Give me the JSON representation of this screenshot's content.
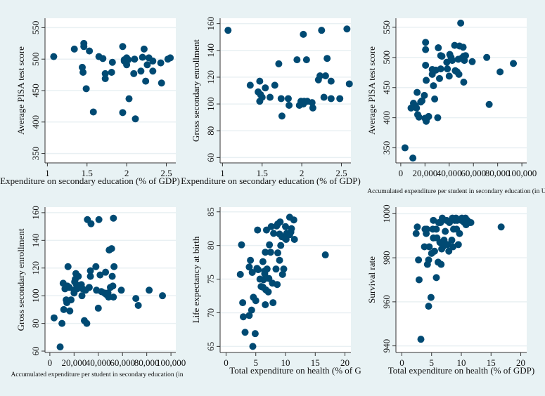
{
  "chart_data": [
    {
      "type": "scatter",
      "id": "p1",
      "title": "",
      "xlabel": "Expenditure on secondary education (% of GDP)",
      "ylabel": "Average PISA test score",
      "xlim": [
        0.97,
        2.62
      ],
      "ylim": [
        335,
        565
      ],
      "xticks": [
        1,
        1.5,
        2,
        2.5
      ],
      "xtick_labels": [
        "1",
        "1.5",
        "2",
        "2.5"
      ],
      "yticks": [
        350,
        400,
        450,
        500,
        550
      ],
      "ytick_labels": [
        "350",
        "400",
        "450",
        "500",
        "550"
      ],
      "grid": true,
      "points": [
        [
          1.08,
          504
        ],
        [
          1.34,
          516
        ],
        [
          1.46,
          525
        ],
        [
          1.46,
          520
        ],
        [
          1.53,
          513
        ],
        [
          1.44,
          487
        ],
        [
          1.45,
          479
        ],
        [
          1.49,
          453
        ],
        [
          1.58,
          416
        ],
        [
          1.65,
          504
        ],
        [
          1.7,
          501
        ],
        [
          1.73,
          477
        ],
        [
          1.73,
          469
        ],
        [
          1.81,
          479
        ],
        [
          1.82,
          495
        ],
        [
          1.95,
          520
        ],
        [
          1.97,
          499
        ],
        [
          2.0,
          502
        ],
        [
          2.0,
          491
        ],
        [
          2.02,
          499
        ],
        [
          1.97,
          497
        ],
        [
          1.95,
          415
        ],
        [
          2.03,
          437
        ],
        [
          2.1,
          500
        ],
        [
          2.09,
          477
        ],
        [
          2.11,
          405
        ],
        [
          2.18,
          481
        ],
        [
          2.2,
          503
        ],
        [
          2.22,
          516
        ],
        [
          2.24,
          465
        ],
        [
          2.26,
          491
        ],
        [
          2.28,
          502
        ],
        [
          2.33,
          497
        ],
        [
          2.33,
          481
        ],
        [
          2.43,
          494
        ],
        [
          2.44,
          462
        ],
        [
          2.52,
          500
        ],
        [
          2.55,
          502
        ]
      ]
    },
    {
      "type": "scatter",
      "id": "p2",
      "title": "",
      "xlabel": "Expenditure on secondary education (% of GDP)",
      "ylabel": "Gross secondary enrollment",
      "xlim": [
        0.97,
        2.62
      ],
      "ylim": [
        56,
        164
      ],
      "xticks": [
        1,
        1.5,
        2,
        2.5
      ],
      "xtick_labels": [
        "1",
        "1.5",
        "2",
        "2.5"
      ],
      "yticks": [
        60,
        80,
        100,
        120,
        140,
        160
      ],
      "ytick_labels": [
        "60",
        "80",
        "100",
        "120",
        "140",
        "160"
      ],
      "grid": true,
      "points": [
        [
          1.07,
          155
        ],
        [
          1.35,
          114
        ],
        [
          1.45,
          109
        ],
        [
          1.47,
          117
        ],
        [
          1.48,
          107
        ],
        [
          1.47,
          102
        ],
        [
          1.5,
          105
        ],
        [
          1.54,
          112
        ],
        [
          1.6,
          105
        ],
        [
          1.66,
          114
        ],
        [
          1.71,
          130
        ],
        [
          1.74,
          104
        ],
        [
          1.75,
          91
        ],
        [
          1.83,
          104
        ],
        [
          1.84,
          99
        ],
        [
          1.94,
          133
        ],
        [
          1.97,
          99
        ],
        [
          1.99,
          102
        ],
        [
          2.02,
          152
        ],
        [
          2.02,
          100
        ],
        [
          2.03,
          102
        ],
        [
          2.06,
          133
        ],
        [
          2.07,
          102
        ],
        [
          2.13,
          101
        ],
        [
          2.14,
          97
        ],
        [
          2.21,
          118
        ],
        [
          2.23,
          121
        ],
        [
          2.25,
          155
        ],
        [
          2.28,
          105
        ],
        [
          2.3,
          121
        ],
        [
          2.32,
          134
        ],
        [
          2.37,
          117
        ],
        [
          2.37,
          104
        ],
        [
          2.48,
          104
        ],
        [
          2.57,
          156
        ],
        [
          2.6,
          115
        ]
      ]
    },
    {
      "type": "scatter",
      "id": "p3",
      "title": "",
      "xlabel": "Accumulated expenditure per student in secondary education (in US$)",
      "ylabel": "Average PISA test score",
      "xlim": [
        -4000,
        104000
      ],
      "ylim": [
        325,
        565
      ],
      "xticks": [
        0,
        20000,
        40000,
        60000,
        80000,
        100000
      ],
      "xtick_labels": [
        "0",
        "20,000",
        "40,000",
        "60,000",
        "80,000",
        "100,000"
      ],
      "yticks": [
        350,
        400,
        450,
        500,
        550
      ],
      "ytick_labels": [
        "350",
        "400",
        "450",
        "500",
        "550"
      ],
      "grid": true,
      "points": [
        [
          3500,
          350
        ],
        [
          10000,
          333
        ],
        [
          8500,
          416
        ],
        [
          10500,
          424
        ],
        [
          12000,
          420
        ],
        [
          13000,
          416
        ],
        [
          13500,
          442
        ],
        [
          14000,
          405
        ],
        [
          15000,
          401
        ],
        [
          16500,
          426
        ],
        [
          17500,
          428
        ],
        [
          19500,
          437
        ],
        [
          20000,
          399
        ],
        [
          20500,
          525
        ],
        [
          20500,
          513
        ],
        [
          20500,
          487
        ],
        [
          21000,
          462
        ],
        [
          21000,
          394
        ],
        [
          22000,
          400
        ],
        [
          23000,
          402
        ],
        [
          26000,
          480
        ],
        [
          26000,
          472
        ],
        [
          27000,
          453
        ],
        [
          28000,
          431
        ],
        [
          29000,
          479
        ],
        [
          30500,
          400
        ],
        [
          31000,
          516
        ],
        [
          32000,
          465
        ],
        [
          33000,
          481
        ],
        [
          33000,
          503
        ],
        [
          34000,
          502
        ],
        [
          38000,
          492
        ],
        [
          38500,
          481
        ],
        [
          40000,
          469
        ],
        [
          40500,
          505
        ],
        [
          41500,
          500
        ],
        [
          42500,
          495
        ],
        [
          44500,
          520
        ],
        [
          45000,
          478
        ],
        [
          46500,
          476
        ],
        [
          47500,
          497
        ],
        [
          48000,
          472
        ],
        [
          48500,
          519
        ],
        [
          49500,
          557
        ],
        [
          50500,
          499
        ],
        [
          51500,
          517
        ],
        [
          52000,
          502
        ],
        [
          52000,
          459
        ],
        [
          52500,
          495
        ],
        [
          53500,
          503
        ],
        [
          59000,
          493
        ],
        [
          71000,
          500
        ],
        [
          73000,
          422
        ],
        [
          82000,
          476
        ],
        [
          93000,
          490
        ]
      ]
    },
    {
      "type": "scatter",
      "id": "p4",
      "title": "",
      "xlabel": "Accumulated expenditure per student in secondary education (in",
      "ylabel": "Gross secondary enrollment",
      "xlim": [
        -4000,
        104000
      ],
      "ylim": [
        59,
        164
      ],
      "xticks": [
        0,
        20000,
        40000,
        60000,
        80000,
        100000
      ],
      "xtick_labels": [
        "0",
        "20,000",
        "40,000",
        "60,000",
        "80,000",
        "100,000"
      ],
      "yticks": [
        60,
        80,
        100,
        120,
        140,
        160
      ],
      "ytick_labels": [
        "60",
        "80",
        "100",
        "120",
        "140",
        "160"
      ],
      "grid": true,
      "points": [
        [
          3500,
          84
        ],
        [
          8500,
          63
        ],
        [
          10000,
          80
        ],
        [
          11000,
          109
        ],
        [
          11500,
          90
        ],
        [
          12500,
          105
        ],
        [
          13500,
          97
        ],
        [
          14000,
          95
        ],
        [
          14500,
          107
        ],
        [
          15000,
          121
        ],
        [
          16000,
          106
        ],
        [
          16500,
          89
        ],
        [
          17500,
          97
        ],
        [
          20000,
          102
        ],
        [
          20000,
          104
        ],
        [
          20500,
          110
        ],
        [
          21000,
          112
        ],
        [
          21500,
          116
        ],
        [
          22000,
          108
        ],
        [
          22500,
          105
        ],
        [
          23500,
          114
        ],
        [
          26000,
          108
        ],
        [
          26500,
          100
        ],
        [
          27000,
          105
        ],
        [
          28500,
          82
        ],
        [
          29500,
          104
        ],
        [
          30500,
          80
        ],
        [
          31000,
          155
        ],
        [
          32500,
          106
        ],
        [
          33500,
          114
        ],
        [
          33500,
          118
        ],
        [
          34000,
          152
        ],
        [
          38000,
          121
        ],
        [
          38500,
          104
        ],
        [
          40000,
          91
        ],
        [
          40500,
          155
        ],
        [
          41500,
          115
        ],
        [
          42500,
          103
        ],
        [
          45000,
          102
        ],
        [
          46000,
          117
        ],
        [
          46500,
          101
        ],
        [
          48000,
          102
        ],
        [
          48500,
          99
        ],
        [
          49000,
          133
        ],
        [
          50000,
          106
        ],
        [
          51000,
          134
        ],
        [
          51500,
          114
        ],
        [
          52000,
          107
        ],
        [
          52500,
          99
        ],
        [
          52500,
          156
        ],
        [
          53000,
          121
        ],
        [
          59000,
          104
        ],
        [
          71000,
          98
        ],
        [
          73000,
          93
        ],
        [
          82000,
          104
        ],
        [
          93000,
          100
        ]
      ]
    },
    {
      "type": "scatter",
      "id": "p5",
      "title": "",
      "xlabel": "Total expenditure on health (% of G",
      "ylabel": "Life expectancy at birth",
      "xlim": [
        -1,
        21
      ],
      "ylim": [
        64.1,
        85.7
      ],
      "xticks": [
        0,
        5,
        10,
        15,
        20
      ],
      "xtick_labels": [
        "0",
        "5",
        "10",
        "15",
        "20"
      ],
      "yticks": [
        65,
        70,
        75,
        80,
        85
      ],
      "ytick_labels": [
        "65",
        "70",
        "75",
        "80",
        "85"
      ],
      "grid": true,
      "points": [
        [
          2.4,
          75.7
        ],
        [
          2.6,
          80.1
        ],
        [
          2.8,
          71.5
        ],
        [
          2.9,
          69.4
        ],
        [
          3.2,
          67.1
        ],
        [
          3.9,
          69.6
        ],
        [
          3.9,
          76.8
        ],
        [
          4.1,
          77.8
        ],
        [
          4.3,
          70.4
        ],
        [
          4.4,
          76
        ],
        [
          4.5,
          65
        ],
        [
          4.6,
          72.3
        ],
        [
          4.9,
          66.9
        ],
        [
          5,
          71.8
        ],
        [
          5.2,
          76.6
        ],
        [
          5.3,
          82.3
        ],
        [
          5.4,
          76.4
        ],
        [
          5.7,
          75
        ],
        [
          5.9,
          73.9
        ],
        [
          6.2,
          73.8
        ],
        [
          6.2,
          77.6
        ],
        [
          6.3,
          74.9
        ],
        [
          6.5,
          75.8
        ],
        [
          6.5,
          76.2
        ],
        [
          6.6,
          79
        ],
        [
          6.6,
          71.2
        ],
        [
          6.7,
          73.4
        ],
        [
          6.8,
          82.3
        ],
        [
          6.9,
          76.5
        ],
        [
          7.1,
          73.1
        ],
        [
          7.2,
          75.1
        ],
        [
          7.3,
          80.1
        ],
        [
          7.5,
          79
        ],
        [
          7.6,
          82.8
        ],
        [
          7.8,
          74.4
        ],
        [
          7.9,
          71.5
        ],
        [
          8,
          81.8
        ],
        [
          8.4,
          76.5
        ],
        [
          8.5,
          82.9
        ],
        [
          8.6,
          74.2
        ],
        [
          8.7,
          83.2
        ],
        [
          8.7,
          78.9
        ],
        [
          9,
          77.8
        ],
        [
          9,
          81.7
        ],
        [
          9.1,
          83.5
        ],
        [
          9.2,
          80
        ],
        [
          9.4,
          81.3
        ],
        [
          9.5,
          75.7
        ],
        [
          9.7,
          76.5
        ],
        [
          9.9,
          81.1
        ],
        [
          10,
          82.8
        ],
        [
          10.1,
          80.9
        ],
        [
          10.2,
          81.8
        ],
        [
          10.7,
          84.2
        ],
        [
          10.7,
          81.6
        ],
        [
          10.9,
          82
        ],
        [
          11,
          82.5
        ],
        [
          11.4,
          83.8
        ],
        [
          11.5,
          80.9
        ],
        [
          16.7,
          78.6
        ]
      ]
    },
    {
      "type": "scatter",
      "id": "p6",
      "title": "",
      "xlabel": "Total expenditure on health (% of GDP)",
      "ylabel": "Survival rate",
      "xlim": [
        -1,
        21
      ],
      "ylim": [
        937,
        1003
      ],
      "xticks": [
        0,
        5,
        10,
        15,
        20
      ],
      "xtick_labels": [
        "0",
        "5",
        "10",
        "15",
        "20"
      ],
      "yticks": [
        940,
        960,
        980,
        1000
      ],
      "ytick_labels": [
        "940",
        "960",
        "980",
        "1000"
      ],
      "grid": true,
      "points": [
        [
          2.4,
          991
        ],
        [
          2.6,
          994
        ],
        [
          2.8,
          979
        ],
        [
          2.9,
          970
        ],
        [
          3.2,
          943
        ],
        [
          3.8,
          985
        ],
        [
          3.9,
          993
        ],
        [
          4.1,
          991
        ],
        [
          4.2,
          993
        ],
        [
          4.3,
          977
        ],
        [
          4.5,
          979
        ],
        [
          4.5,
          958
        ],
        [
          4.6,
          985
        ],
        [
          4.9,
          962
        ],
        [
          5,
          982
        ],
        [
          5.2,
          993
        ],
        [
          5.3,
          997
        ],
        [
          5.3,
          989
        ],
        [
          5.5,
          983
        ],
        [
          5.8,
          993
        ],
        [
          5.8,
          971
        ],
        [
          5.9,
          989
        ],
        [
          6.1,
          978
        ],
        [
          6.2,
          996
        ],
        [
          6.4,
          987
        ],
        [
          6.5,
          996
        ],
        [
          6.6,
          977
        ],
        [
          6.7,
          984
        ],
        [
          6.8,
          998
        ],
        [
          6.9,
          985
        ],
        [
          7.1,
          988
        ],
        [
          7.2,
          986
        ],
        [
          7.3,
          992
        ],
        [
          7.5,
          997
        ],
        [
          7.7,
          986
        ],
        [
          7.9,
          983
        ],
        [
          8,
          996
        ],
        [
          8.4,
          988
        ],
        [
          8.5,
          998
        ],
        [
          8.6,
          985
        ],
        [
          8.7,
          993
        ],
        [
          8.9,
          997
        ],
        [
          9.1,
          998
        ],
        [
          9.2,
          993
        ],
        [
          9.3,
          997
        ],
        [
          9.5,
          986
        ],
        [
          9.7,
          991
        ],
        [
          10,
          997
        ],
        [
          10.1,
          998
        ],
        [
          10.5,
          996
        ],
        [
          10.7,
          998
        ],
        [
          10.8,
          995
        ],
        [
          11,
          997
        ],
        [
          11.3,
          996
        ],
        [
          11.6,
          996
        ],
        [
          16.7,
          994
        ]
      ]
    }
  ],
  "style": {
    "marker_color": "#004a73",
    "grid_color": "#e9f0f3",
    "plot_bg": "#ffffff",
    "page_bg": "#e8f2f4",
    "axis_color": "#333333"
  }
}
